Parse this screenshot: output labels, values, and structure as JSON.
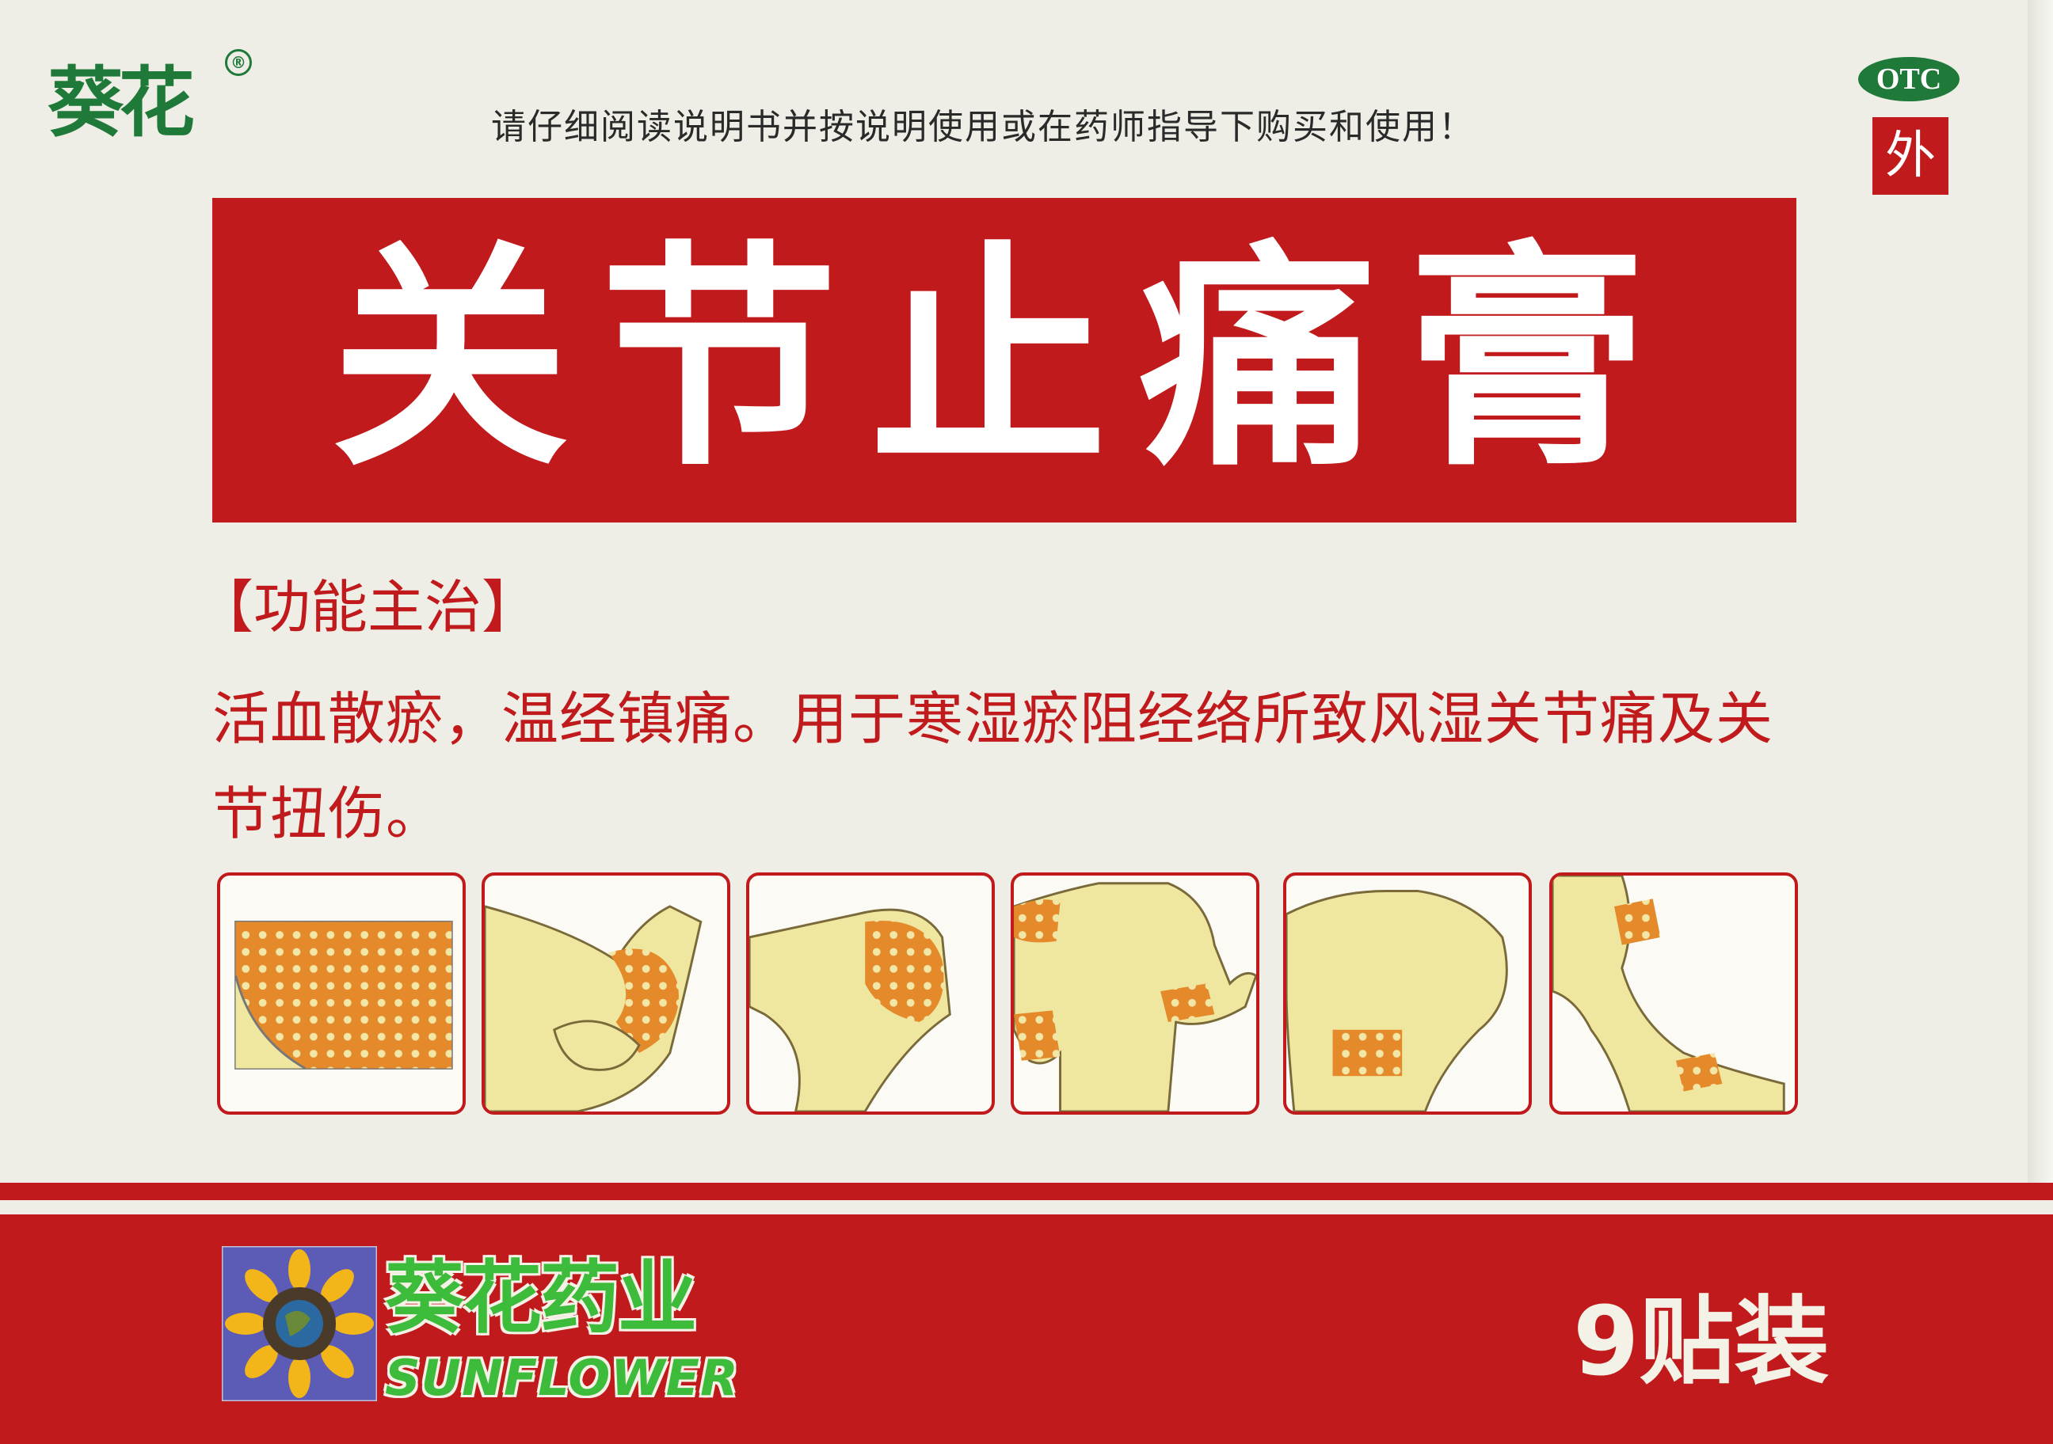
{
  "header": {
    "brand_logo": "葵花",
    "brand_registered_mark": "®",
    "warning": "请仔细阅读说明书并按说明使用或在药师指导下购买和使用！",
    "otc_badge": "OTC",
    "external_use_badge": "外"
  },
  "product": {
    "title": "关节止痛膏"
  },
  "indications": {
    "heading": "【功能主治】",
    "description": "活血散瘀，温经镇痛。用于寒湿瘀阻经络所致风湿关节痛及关节扭伤。"
  },
  "usage_illustrations": [
    {
      "icon": "patch-sheet-icon"
    },
    {
      "icon": "knee-side-icon"
    },
    {
      "icon": "knee-front-icon"
    },
    {
      "icon": "shoulder-wrist-icon"
    },
    {
      "icon": "lower-back-icon"
    },
    {
      "icon": "leg-ankle-icon"
    }
  ],
  "footer": {
    "company_name": "葵花药业",
    "company_name_en": "SUNFLOWER",
    "package_count": "9贴装"
  },
  "colors": {
    "brand_red": "#c01a1c",
    "brand_green": "#1f7a3a",
    "logo_green": "#3dbb3a",
    "patch_orange": "#e58a2b",
    "skin": "#efe7a0",
    "background": "#eeede6"
  }
}
